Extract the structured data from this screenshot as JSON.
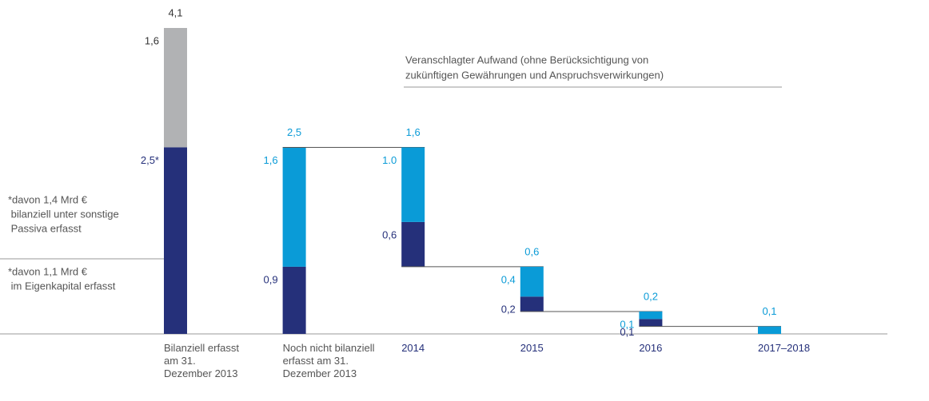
{
  "chart_data": {
    "type": "waterfall",
    "categories": [
      "Bilanziell erfasst am 31. Dezember 2013",
      "Noch nicht bilanziell erfasst am 31. Dezember 2013",
      "2014",
      "2015",
      "2016",
      "2017–2018"
    ],
    "category_colors": [
      "#555555",
      "#555555",
      "#25307a",
      "#25307a",
      "#25307a",
      "#25307a"
    ],
    "series": [
      {
        "color": "#25307a",
        "label_color": "#25307a",
        "values": [
          2.5,
          0.9,
          0.6,
          0.2,
          0.1,
          null
        ],
        "value_labels": [
          "2,5*",
          "0,9",
          "0,6",
          "0,2",
          "0,1",
          null
        ]
      },
      {
        "color": "#0a9bd7",
        "label_color": "#0a9bd7",
        "values": [
          null,
          1.6,
          1.0,
          0.4,
          0.1,
          null
        ],
        "value_labels": [
          null,
          "1,6",
          "1.0",
          "0,4",
          "0,1",
          null
        ]
      },
      {
        "color": "#0a9bd7",
        "label_color": "#0a9bd7",
        "values": [
          null,
          null,
          null,
          null,
          null,
          0.1
        ],
        "value_labels": [
          null,
          null,
          null,
          null,
          null,
          null
        ]
      },
      {
        "color": "#b1b2b4",
        "label_color": "#333333",
        "values": [
          1.6,
          null,
          null,
          null,
          null,
          null
        ],
        "value_labels": [
          "1,6",
          null,
          null,
          null,
          null,
          null
        ]
      }
    ],
    "totals": {
      "values": [
        4.1,
        2.5,
        1.6,
        0.6,
        0.2,
        0.1
      ],
      "value_labels": [
        "4,1",
        "2,5",
        "1,6",
        "0,6",
        "0,2",
        "0,1"
      ]
    },
    "annotation": [
      "Veranschlagter Aufwand (ohne Berücksichtigung von",
      "zukünftigen Gewährungen und Anspruchsverwirkungen)"
    ],
    "notes": [
      [
        "*davon 1,4 Mrd €",
        " bilanziell unter sonstige",
        " Passiva erfasst"
      ],
      [
        "*davon 1,1 Mrd €",
        " im Eigenkapital erfasst"
      ]
    ]
  }
}
